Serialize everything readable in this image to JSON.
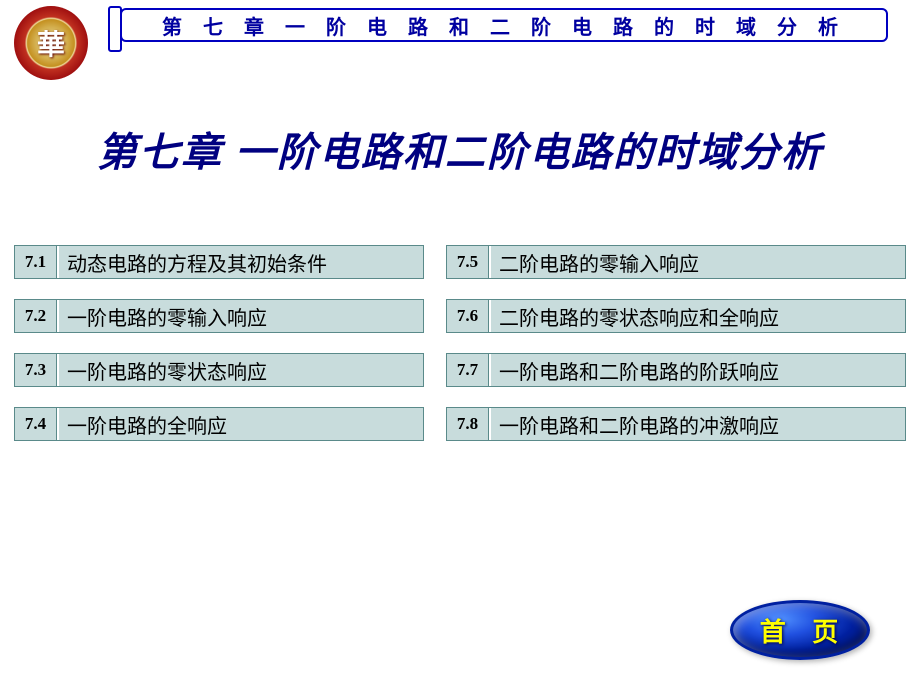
{
  "header": {
    "banner_title": "第 七 章   一 阶 电 路 和 二 阶 电 路 的 时 域 分 析",
    "logo_char": "華"
  },
  "main_title": "第七章  一阶电路和二阶电路的时域分析",
  "sections_left": [
    {
      "num": "7.1",
      "text": "动态电路的方程及其初始条件"
    },
    {
      "num": "7.2",
      "text": "一阶电路的零输入响应"
    },
    {
      "num": "7.3",
      "text": "一阶电路的零状态响应"
    },
    {
      "num": "7.4",
      "text": "一阶电路的全响应"
    }
  ],
  "sections_right": [
    {
      "num": "7.5",
      "text": "二阶电路的零输入响应"
    },
    {
      "num": "7.6",
      "text": "二阶电路的零状态响应和全响应"
    },
    {
      "num": "7.7",
      "text": "一阶电路和二阶电路的阶跃响应"
    },
    {
      "num": "7.8",
      "text": "一阶电路和二阶电路的冲激响应"
    }
  ],
  "home_button_label": "首 页",
  "colors": {
    "banner_border": "#0000c0",
    "banner_text": "#0000a0",
    "main_title": "#000080",
    "section_bg": "#c8dcdc",
    "section_border": "#5a8a8a",
    "home_text": "#ffff00",
    "logo_red": "#a01010"
  }
}
